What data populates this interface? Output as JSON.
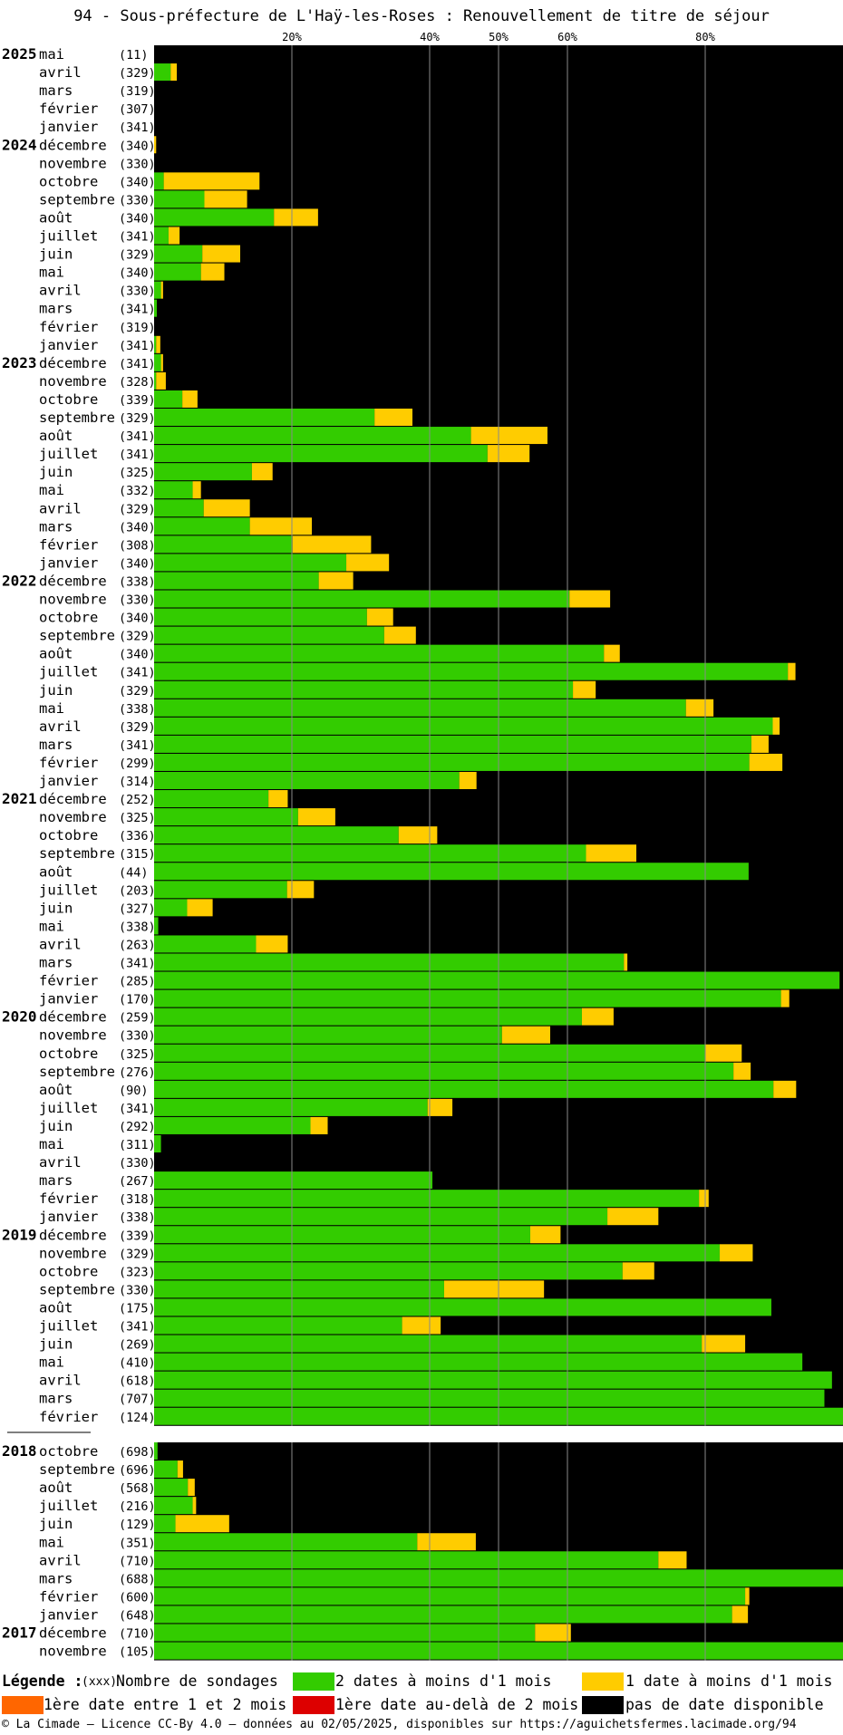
{
  "title": "94 - Sous-préfecture de L'Haÿ-les-Roses : Renouvellement de titre de séjour",
  "colors": {
    "green": "#33cc00",
    "yellow": "#ffcc00",
    "orange": "#ff6600",
    "red": "#dd0000",
    "black": "#000000"
  },
  "chart_data": {
    "type": "bar",
    "orientation": "horizontal-stacked-100",
    "x_ticks": [
      {
        "value": 20,
        "label": "20%"
      },
      {
        "value": 40,
        "label": "40%"
      },
      {
        "value": 50,
        "label": "50%"
      },
      {
        "value": 60,
        "label": "60%"
      },
      {
        "value": 80,
        "label": "80%"
      }
    ],
    "xlim": [
      0,
      100
    ],
    "grid": true,
    "series_colors": {
      "green": "#33cc00",
      "yellow": "#ffcc00",
      "orange": "#ff6600",
      "red": "#dd0000",
      "black": "#000000"
    },
    "groups": [
      {
        "rows": [
          {
            "year": "2025",
            "month": "mai",
            "count": "(11)",
            "green": 0,
            "yellow": 0
          },
          {
            "month": "avril",
            "count": "(329)",
            "green": 2.4,
            "yellow": 0.9
          },
          {
            "month": "mars",
            "count": "(319)",
            "green": 0,
            "yellow": 0
          },
          {
            "month": "février",
            "count": "(307)",
            "green": 0,
            "yellow": 0
          },
          {
            "month": "janvier",
            "count": "(341)",
            "green": 0,
            "yellow": 0
          },
          {
            "year": "2024",
            "month": "décembre",
            "count": "(340)",
            "green": 0,
            "yellow": 0.3
          },
          {
            "month": "novembre",
            "count": "(330)",
            "green": 0,
            "yellow": 0
          },
          {
            "month": "octobre",
            "count": "(340)",
            "green": 1.4,
            "yellow": 13.9
          },
          {
            "month": "septembre",
            "count": "(330)",
            "green": 7.3,
            "yellow": 6.2
          },
          {
            "month": "août",
            "count": "(340)",
            "green": 17.4,
            "yellow": 6.4
          },
          {
            "month": "juillet",
            "count": "(341)",
            "green": 2.1,
            "yellow": 1.6
          },
          {
            "month": "juin",
            "count": "(329)",
            "green": 7.0,
            "yellow": 5.5
          },
          {
            "month": "mai",
            "count": "(340)",
            "green": 6.8,
            "yellow": 3.4
          },
          {
            "month": "avril",
            "count": "(330)",
            "green": 1.0,
            "yellow": 0.3
          },
          {
            "month": "mars",
            "count": "(341)",
            "green": 0.4,
            "yellow": 0
          },
          {
            "month": "février",
            "count": "(319)",
            "green": 0,
            "yellow": 0
          },
          {
            "month": "janvier",
            "count": "(341)",
            "green": 0.3,
            "yellow": 0.6
          },
          {
            "year": "2023",
            "month": "décembre",
            "count": "(341)",
            "green": 1.0,
            "yellow": 0.3
          },
          {
            "month": "novembre",
            "count": "(328)",
            "green": 0.3,
            "yellow": 1.4
          },
          {
            "month": "octobre",
            "count": "(339)",
            "green": 4.1,
            "yellow": 2.2
          },
          {
            "month": "septembre",
            "count": "(329)",
            "green": 32.0,
            "yellow": 5.5
          },
          {
            "month": "août",
            "count": "(341)",
            "green": 46.0,
            "yellow": 11.1
          },
          {
            "month": "juillet",
            "count": "(341)",
            "green": 48.4,
            "yellow": 6.1
          },
          {
            "month": "juin",
            "count": "(325)",
            "green": 14.2,
            "yellow": 3.0
          },
          {
            "month": "mai",
            "count": "(332)",
            "green": 5.6,
            "yellow": 1.2
          },
          {
            "month": "avril",
            "count": "(329)",
            "green": 7.2,
            "yellow": 6.7
          },
          {
            "month": "mars",
            "count": "(340)",
            "green": 13.9,
            "yellow": 9.0
          },
          {
            "month": "février",
            "count": "(308)",
            "green": 20.1,
            "yellow": 11.4
          },
          {
            "month": "janvier",
            "count": "(340)",
            "green": 27.9,
            "yellow": 6.2
          },
          {
            "year": "2022",
            "month": "décembre",
            "count": "(338)",
            "green": 23.9,
            "yellow": 5.0
          },
          {
            "month": "novembre",
            "count": "(330)",
            "green": 60.3,
            "yellow": 5.9
          },
          {
            "month": "octobre",
            "count": "(340)",
            "green": 30.9,
            "yellow": 3.8
          },
          {
            "month": "septembre",
            "count": "(329)",
            "green": 33.4,
            "yellow": 4.6
          },
          {
            "month": "août",
            "count": "(340)",
            "green": 65.3,
            "yellow": 2.3
          },
          {
            "month": "juillet",
            "count": "(341)",
            "green": 92.0,
            "yellow": 1.1
          },
          {
            "month": "juin",
            "count": "(329)",
            "green": 60.8,
            "yellow": 3.3
          },
          {
            "month": "mai",
            "count": "(338)",
            "green": 77.2,
            "yellow": 4.0
          },
          {
            "month": "avril",
            "count": "(329)",
            "green": 89.8,
            "yellow": 1.0
          },
          {
            "month": "mars",
            "count": "(341)",
            "green": 86.7,
            "yellow": 2.5
          },
          {
            "month": "février",
            "count": "(299)",
            "green": 86.4,
            "yellow": 4.8
          },
          {
            "month": "janvier",
            "count": "(314)",
            "green": 44.3,
            "yellow": 2.5
          },
          {
            "year": "2021",
            "month": "décembre",
            "count": "(252)",
            "green": 16.6,
            "yellow": 2.8
          },
          {
            "month": "novembre",
            "count": "(325)",
            "green": 20.9,
            "yellow": 5.4
          },
          {
            "month": "octobre",
            "count": "(336)",
            "green": 35.5,
            "yellow": 5.6
          },
          {
            "month": "septembre",
            "count": "(315)",
            "green": 62.7,
            "yellow": 7.3
          },
          {
            "month": "août",
            "count": "(44)",
            "green": 86.3,
            "yellow": 0
          },
          {
            "month": "juillet",
            "count": "(203)",
            "green": 19.3,
            "yellow": 3.9
          },
          {
            "month": "juin",
            "count": "(327)",
            "green": 4.8,
            "yellow": 3.7
          },
          {
            "month": "mai",
            "count": "(338)",
            "green": 0.6,
            "yellow": 0
          },
          {
            "month": "avril",
            "count": "(263)",
            "green": 14.8,
            "yellow": 4.6
          },
          {
            "month": "mars",
            "count": "(341)",
            "green": 68.2,
            "yellow": 0.5
          },
          {
            "month": "février",
            "count": "(285)",
            "green": 99.5,
            "yellow": 0
          },
          {
            "month": "janvier",
            "count": "(170)",
            "green": 91.0,
            "yellow": 1.2
          },
          {
            "year": "2020",
            "month": "décembre",
            "count": "(259)",
            "green": 62.1,
            "yellow": 4.6
          },
          {
            "month": "novembre",
            "count": "(330)",
            "green": 50.5,
            "yellow": 7.0
          },
          {
            "month": "octobre",
            "count": "(325)",
            "green": 80.0,
            "yellow": 5.3
          },
          {
            "month": "septembre",
            "count": "(276)",
            "green": 84.1,
            "yellow": 2.5
          },
          {
            "month": "août",
            "count": "(90)",
            "green": 89.9,
            "yellow": 3.3
          },
          {
            "month": "juillet",
            "count": "(341)",
            "green": 39.7,
            "yellow": 3.6
          },
          {
            "month": "juin",
            "count": "(292)",
            "green": 22.7,
            "yellow": 2.5
          },
          {
            "month": "mai",
            "count": "(311)",
            "green": 1.0,
            "yellow": 0
          },
          {
            "month": "avril",
            "count": "(330)",
            "green": 0,
            "yellow": 0
          },
          {
            "month": "mars",
            "count": "(267)",
            "green": 40.4,
            "yellow": 0
          },
          {
            "month": "février",
            "count": "(318)",
            "green": 79.1,
            "yellow": 1.4
          },
          {
            "month": "janvier",
            "count": "(338)",
            "green": 65.8,
            "yellow": 7.4
          },
          {
            "year": "2019",
            "month": "décembre",
            "count": "(339)",
            "green": 54.6,
            "yellow": 4.4
          },
          {
            "month": "novembre",
            "count": "(329)",
            "green": 82.1,
            "yellow": 4.8
          },
          {
            "month": "octobre",
            "count": "(323)",
            "green": 68.0,
            "yellow": 4.6
          },
          {
            "month": "septembre",
            "count": "(330)",
            "green": 42.1,
            "yellow": 14.5
          },
          {
            "month": "août",
            "count": "(175)",
            "green": 89.6,
            "yellow": 0
          },
          {
            "month": "juillet",
            "count": "(341)",
            "green": 36.0,
            "yellow": 5.6
          },
          {
            "month": "juin",
            "count": "(269)",
            "green": 79.5,
            "yellow": 6.3
          },
          {
            "month": "mai",
            "count": "(410)",
            "green": 94.1,
            "yellow": 0
          },
          {
            "month": "avril",
            "count": "(618)",
            "green": 98.4,
            "yellow": 0
          },
          {
            "month": "mars",
            "count": "(707)",
            "green": 97.3,
            "yellow": 0
          },
          {
            "month": "février",
            "count": "(124)",
            "green": 100,
            "yellow": 0
          }
        ]
      },
      {
        "rows": [
          {
            "year": "2018",
            "month": "octobre",
            "count": "(698)",
            "green": 0.5,
            "yellow": 0
          },
          {
            "month": "septembre",
            "count": "(696)",
            "green": 3.4,
            "yellow": 0.8
          },
          {
            "month": "août",
            "count": "(568)",
            "green": 4.9,
            "yellow": 1.0
          },
          {
            "month": "juillet",
            "count": "(216)",
            "green": 5.6,
            "yellow": 0.5
          },
          {
            "month": "juin",
            "count": "(129)",
            "green": 3.1,
            "yellow": 7.8
          },
          {
            "month": "mai",
            "count": "(351)",
            "green": 38.2,
            "yellow": 8.5
          },
          {
            "month": "avril",
            "count": "(710)",
            "green": 73.2,
            "yellow": 4.1
          },
          {
            "month": "mars",
            "count": "(688)",
            "green": 100,
            "yellow": 0
          },
          {
            "month": "février",
            "count": "(600)",
            "green": 85.8,
            "yellow": 0.6
          },
          {
            "month": "janvier",
            "count": "(648)",
            "green": 83.9,
            "yellow": 2.3
          },
          {
            "year": "2017",
            "month": "décembre",
            "count": "(710)",
            "green": 55.3,
            "yellow": 5.2
          },
          {
            "month": "novembre",
            "count": "(105)",
            "green": 100,
            "yellow": 0
          }
        ]
      }
    ]
  },
  "legend": {
    "title": "Légende :",
    "count_marker": "(xxx)",
    "count_label": "Nombre de sondages",
    "items": [
      {
        "key": "green",
        "label": "2 dates à moins d'1 mois"
      },
      {
        "key": "yellow",
        "label": "1 date à moins d'1 mois"
      },
      {
        "key": "orange",
        "label": "1ère date entre 1 et 2 mois"
      },
      {
        "key": "red",
        "label": "1ère date au-delà de 2 mois"
      },
      {
        "key": "black",
        "label": "pas de date disponible"
      }
    ]
  },
  "footer": "© La Cimade – Licence CC-By 4.0 – données au 02/05/2025, disponibles sur https://aguichetsfermes.lacimade.org/94"
}
